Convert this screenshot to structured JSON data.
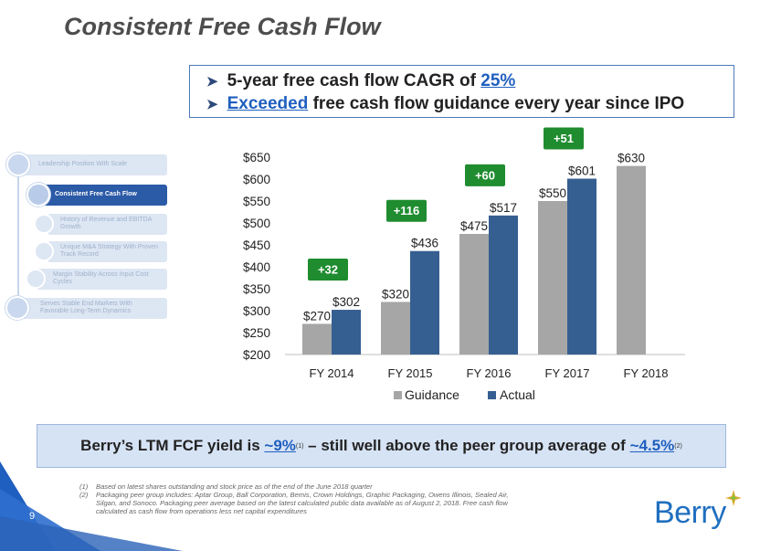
{
  "slide": {
    "title": "Consistent Free Cash Flow",
    "page_number": "9"
  },
  "callout": {
    "line1_prefix": "5-year free cash flow CAGR of ",
    "line1_highlight": "25%",
    "line2_highlight": "Exceeded",
    "line2_suffix": " free cash flow guidance every year since IPO"
  },
  "sidenav": {
    "items": [
      {
        "label": "Leadership Position With Scale",
        "active": false
      },
      {
        "label": "Consistent Free Cash Flow",
        "active": true
      },
      {
        "label": "History of Revenue and EBITDA Growth",
        "active": false
      },
      {
        "label": "Unique M&A Strategy With Proven Track Record",
        "active": false
      },
      {
        "label": "Margin Stability Across Input Cost Cycles",
        "active": false
      },
      {
        "label": "Serves Stable End Markets With Favorable Long-Term Dynamics",
        "active": false
      }
    ]
  },
  "chart_data": {
    "type": "bar",
    "categories": [
      "FY 2014",
      "FY 2015",
      "FY 2016",
      "FY 2017",
      "FY 2018"
    ],
    "series": [
      {
        "name": "Guidance",
        "values": [
          270,
          320,
          475,
          550,
          630
        ],
        "color": "#a6a6a6"
      },
      {
        "name": "Actual",
        "values": [
          302,
          436,
          517,
          601,
          null
        ],
        "color": "#365f91"
      }
    ],
    "data_labels": {
      "Guidance": [
        "$270",
        "$320",
        "$475",
        "$550",
        "$630"
      ],
      "Actual": [
        "$302",
        "$436",
        "$517",
        "$601",
        ""
      ]
    },
    "differences": [
      "+32",
      "+116",
      "+60",
      "+51"
    ],
    "difference_color": "#1f8c2f",
    "yticks": [
      "$200",
      "$250",
      "$300",
      "$350",
      "$400",
      "$450",
      "$500",
      "$550",
      "$600",
      "$650"
    ],
    "ylim": [
      200,
      650
    ],
    "legend_position": "bottom",
    "grid": false
  },
  "yield_banner": {
    "prefix": "Berry’s LTM FCF yield is ",
    "highlight1": "~9%",
    "note1": "(1)",
    "middle": " – still well above the peer group average of ",
    "highlight2": "~4.5%",
    "note2": "(2)"
  },
  "footnotes": [
    {
      "num": "(1)",
      "text": "Based on latest shares outstanding and stock price as of the end of the June 2018 quarter"
    },
    {
      "num": "(2)",
      "text": "Packaging peer group includes: Aptar Group, Ball Corporation, Bemis, Crown Holdings, Graphic Packaging, Owens Illinois, Sealed Air, Silgan, and Sonoco.   Packaging peer average based on the latest calculated public data available as of August 2, 2018.  Free cash flow calculated as cash flow from operations less net capital expenditures"
    }
  ],
  "logo": {
    "text": "Berry"
  },
  "colors": {
    "accent_blue": "#1f5fbf",
    "actual_bar": "#365f91",
    "guidance_bar": "#a6a6a6",
    "diff_badge": "#1f8c2f",
    "nav_active": "#2b5aa6"
  }
}
